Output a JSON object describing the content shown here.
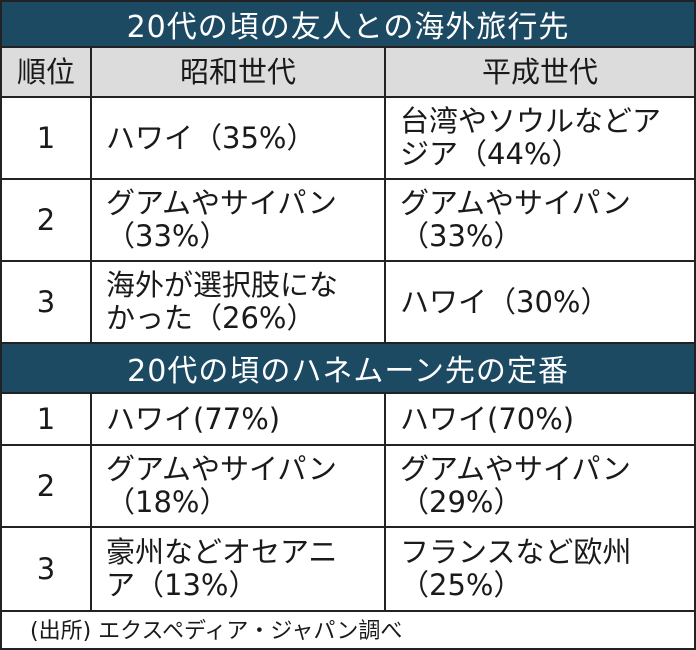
{
  "colors": {
    "title_bg": "#1c4a63",
    "header_bg": "#dcdcdc"
  },
  "section1": {
    "title": "20代の頃の友人との海外旅行先",
    "headers": [
      "順位",
      "昭和世代",
      "平成世代"
    ],
    "rows": [
      {
        "rank": "1",
        "showa": [
          "ハワイ（35%）"
        ],
        "heisei": [
          "台湾やソウルなどア",
          "ジア（44%）"
        ]
      },
      {
        "rank": "2",
        "showa": [
          "グアムやサイパン",
          "（33%）"
        ],
        "heisei": [
          "グアムやサイパン",
          "（33%）"
        ]
      },
      {
        "rank": "3",
        "showa": [
          "海外が選択肢にな",
          "かった（26%）"
        ],
        "heisei": [
          "ハワイ（30%）"
        ]
      }
    ]
  },
  "section2": {
    "title": "20代の頃のハネムーン先の定番",
    "rows": [
      {
        "rank": "1",
        "showa": [
          "ハワイ(77%)"
        ],
        "heisei": [
          "ハワイ(70%)"
        ]
      },
      {
        "rank": "2",
        "showa": [
          "グアムやサイパン",
          "（18%）"
        ],
        "heisei": [
          "グアムやサイパン",
          "（29%）"
        ]
      },
      {
        "rank": "3",
        "showa": [
          "豪州などオセアニ",
          "ア（13%）"
        ],
        "heisei": [
          "フランスなど欧州",
          "（25%）"
        ]
      }
    ]
  },
  "footer": "(出所) エクスペディア・ジャパン調べ"
}
